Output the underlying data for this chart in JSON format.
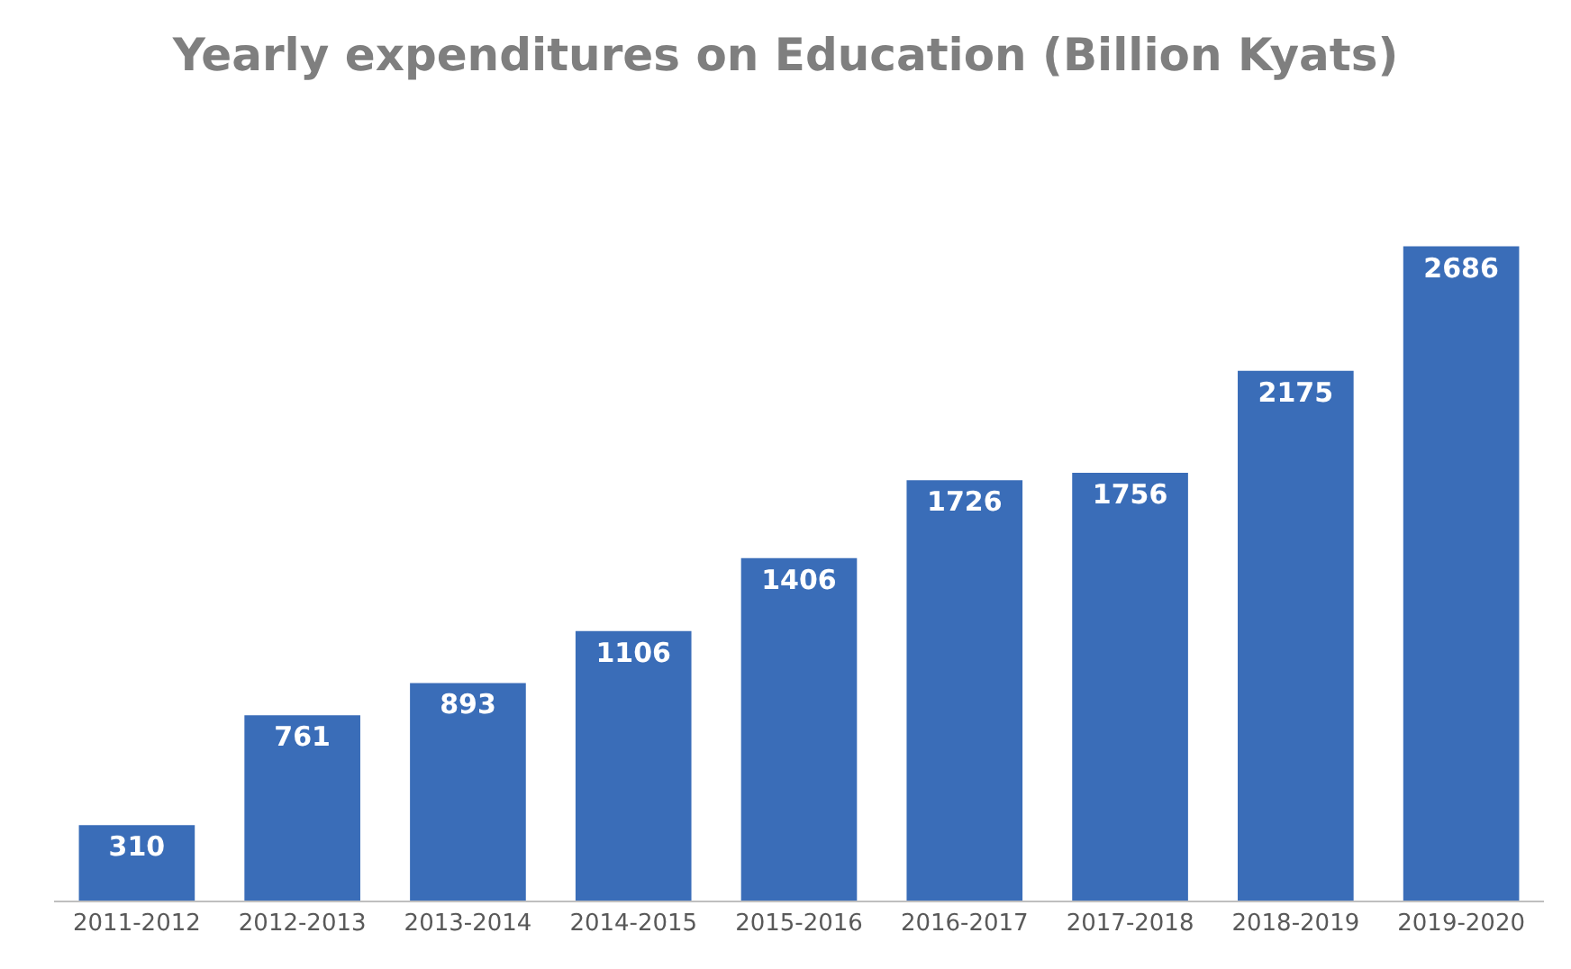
{
  "chart_data": {
    "type": "bar",
    "title": "Yearly expenditures on Education (Billion Kyats)",
    "categories": [
      "2011-2012",
      "2012-2013",
      "2013-2014",
      "2014-2015",
      "2015-2016",
      "2016-2017",
      "2017-2018",
      "2018-2019",
      "2019-2020"
    ],
    "values": [
      310,
      761,
      893,
      1106,
      1406,
      1726,
      1756,
      2175,
      2686
    ],
    "color": "#3a6db8",
    "data_labels": true
  }
}
